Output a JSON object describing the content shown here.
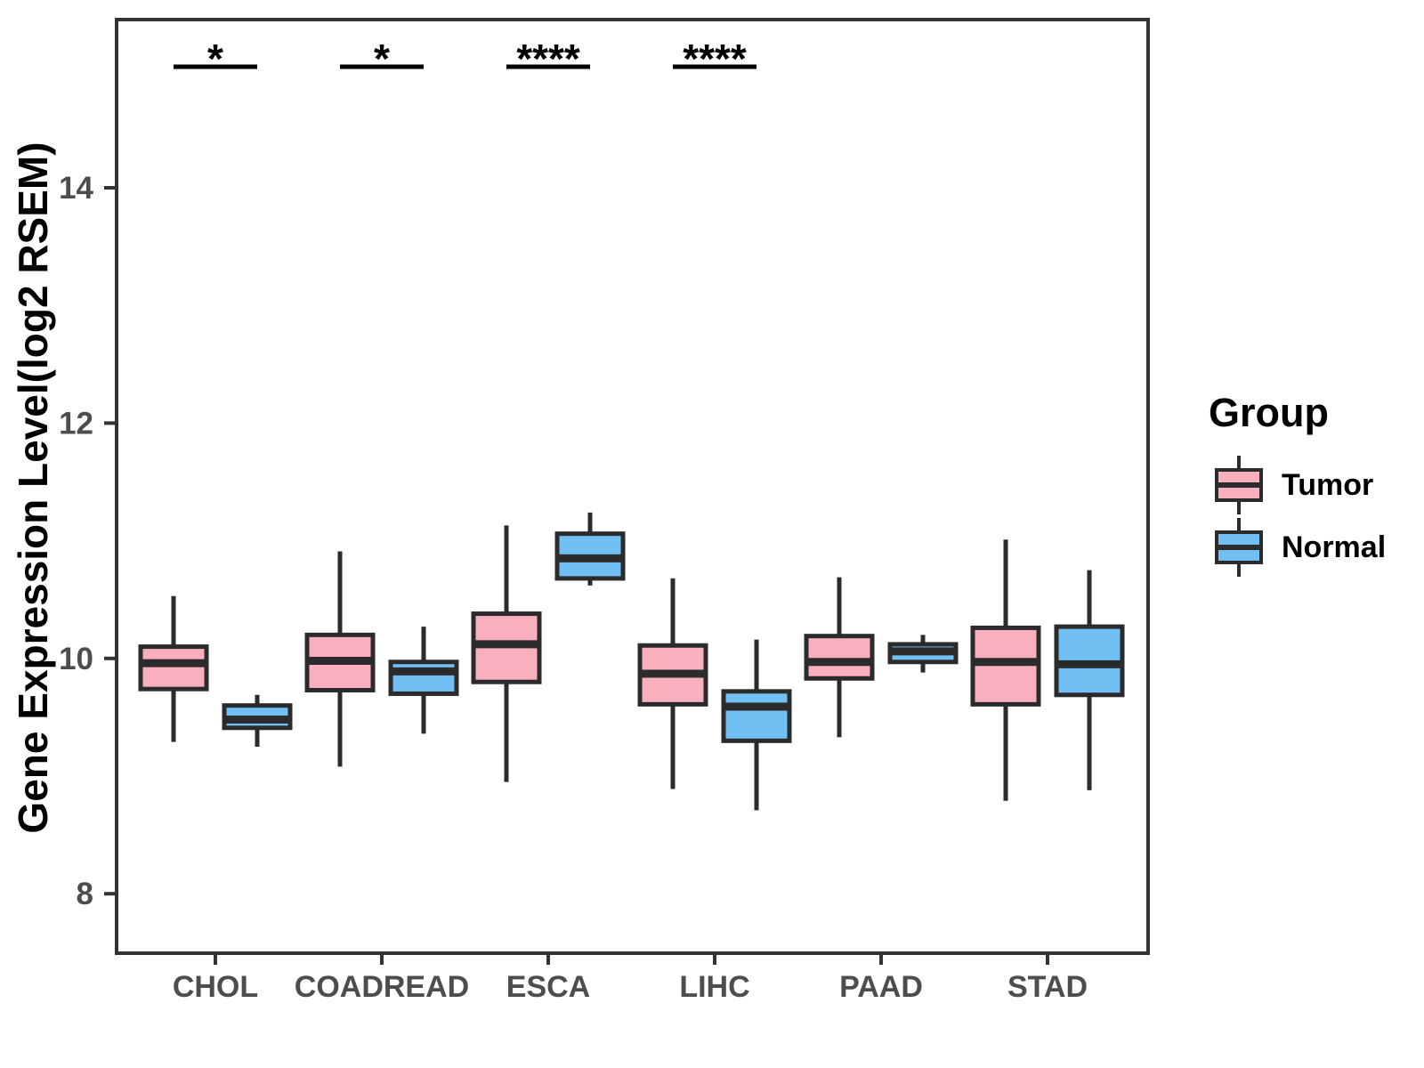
{
  "chart_data": {
    "type": "boxplot",
    "title": "",
    "xlabel": "",
    "ylabel": "Gene Expression Level(log2 RSEM)",
    "legend_title": "Group",
    "legend_position": "right",
    "grid": false,
    "categories": [
      "CHOL",
      "COADREAD",
      "ESCA",
      "LIHC",
      "PAAD",
      "STAD"
    ],
    "yticks": [
      8,
      10,
      12,
      14
    ],
    "ylim": [
      7.5,
      15.4
    ],
    "significance": [
      {
        "category": "CHOL",
        "label": "*"
      },
      {
        "category": "COADREAD",
        "label": "*"
      },
      {
        "category": "ESCA",
        "label": "****"
      },
      {
        "category": "LIHC",
        "label": "****"
      }
    ],
    "series": [
      {
        "name": "Tumor",
        "color": "#FAAFBF",
        "boxes": [
          {
            "category": "CHOL",
            "min": 9.29,
            "q1": 9.74,
            "median": 9.96,
            "q3": 10.1,
            "max": 10.53
          },
          {
            "category": "COADREAD",
            "min": 9.08,
            "q1": 9.73,
            "median": 9.98,
            "q3": 10.2,
            "max": 10.91
          },
          {
            "category": "ESCA",
            "min": 8.95,
            "q1": 9.8,
            "median": 10.12,
            "q3": 10.38,
            "max": 11.13
          },
          {
            "category": "LIHC",
            "min": 8.89,
            "q1": 9.61,
            "median": 9.87,
            "q3": 10.11,
            "max": 10.68
          },
          {
            "category": "PAAD",
            "min": 9.33,
            "q1": 9.83,
            "median": 9.97,
            "q3": 10.19,
            "max": 10.69
          },
          {
            "category": "STAD",
            "min": 8.79,
            "q1": 9.61,
            "median": 9.97,
            "q3": 10.26,
            "max": 11.01
          }
        ]
      },
      {
        "name": "Normal",
        "color": "#72BFF3",
        "boxes": [
          {
            "category": "CHOL",
            "min": 9.25,
            "q1": 9.41,
            "median": 9.48,
            "q3": 9.6,
            "max": 9.69
          },
          {
            "category": "COADREAD",
            "min": 9.36,
            "q1": 9.7,
            "median": 9.89,
            "q3": 9.97,
            "max": 10.27
          },
          {
            "category": "ESCA",
            "min": 10.62,
            "q1": 10.68,
            "median": 10.85,
            "q3": 11.06,
            "max": 11.24
          },
          {
            "category": "LIHC",
            "min": 8.71,
            "q1": 9.3,
            "median": 9.59,
            "q3": 9.72,
            "max": 10.16
          },
          {
            "category": "PAAD",
            "min": 9.88,
            "q1": 9.97,
            "median": 10.06,
            "q3": 10.12,
            "max": 10.2
          },
          {
            "category": "STAD",
            "min": 8.88,
            "q1": 9.69,
            "median": 9.95,
            "q3": 10.27,
            "max": 10.75
          }
        ]
      }
    ],
    "colors": {
      "box_stroke": "#2B2B2B",
      "panel_border": "#333333",
      "axis_text": "#4D4D4D",
      "significance": "#000000"
    }
  }
}
